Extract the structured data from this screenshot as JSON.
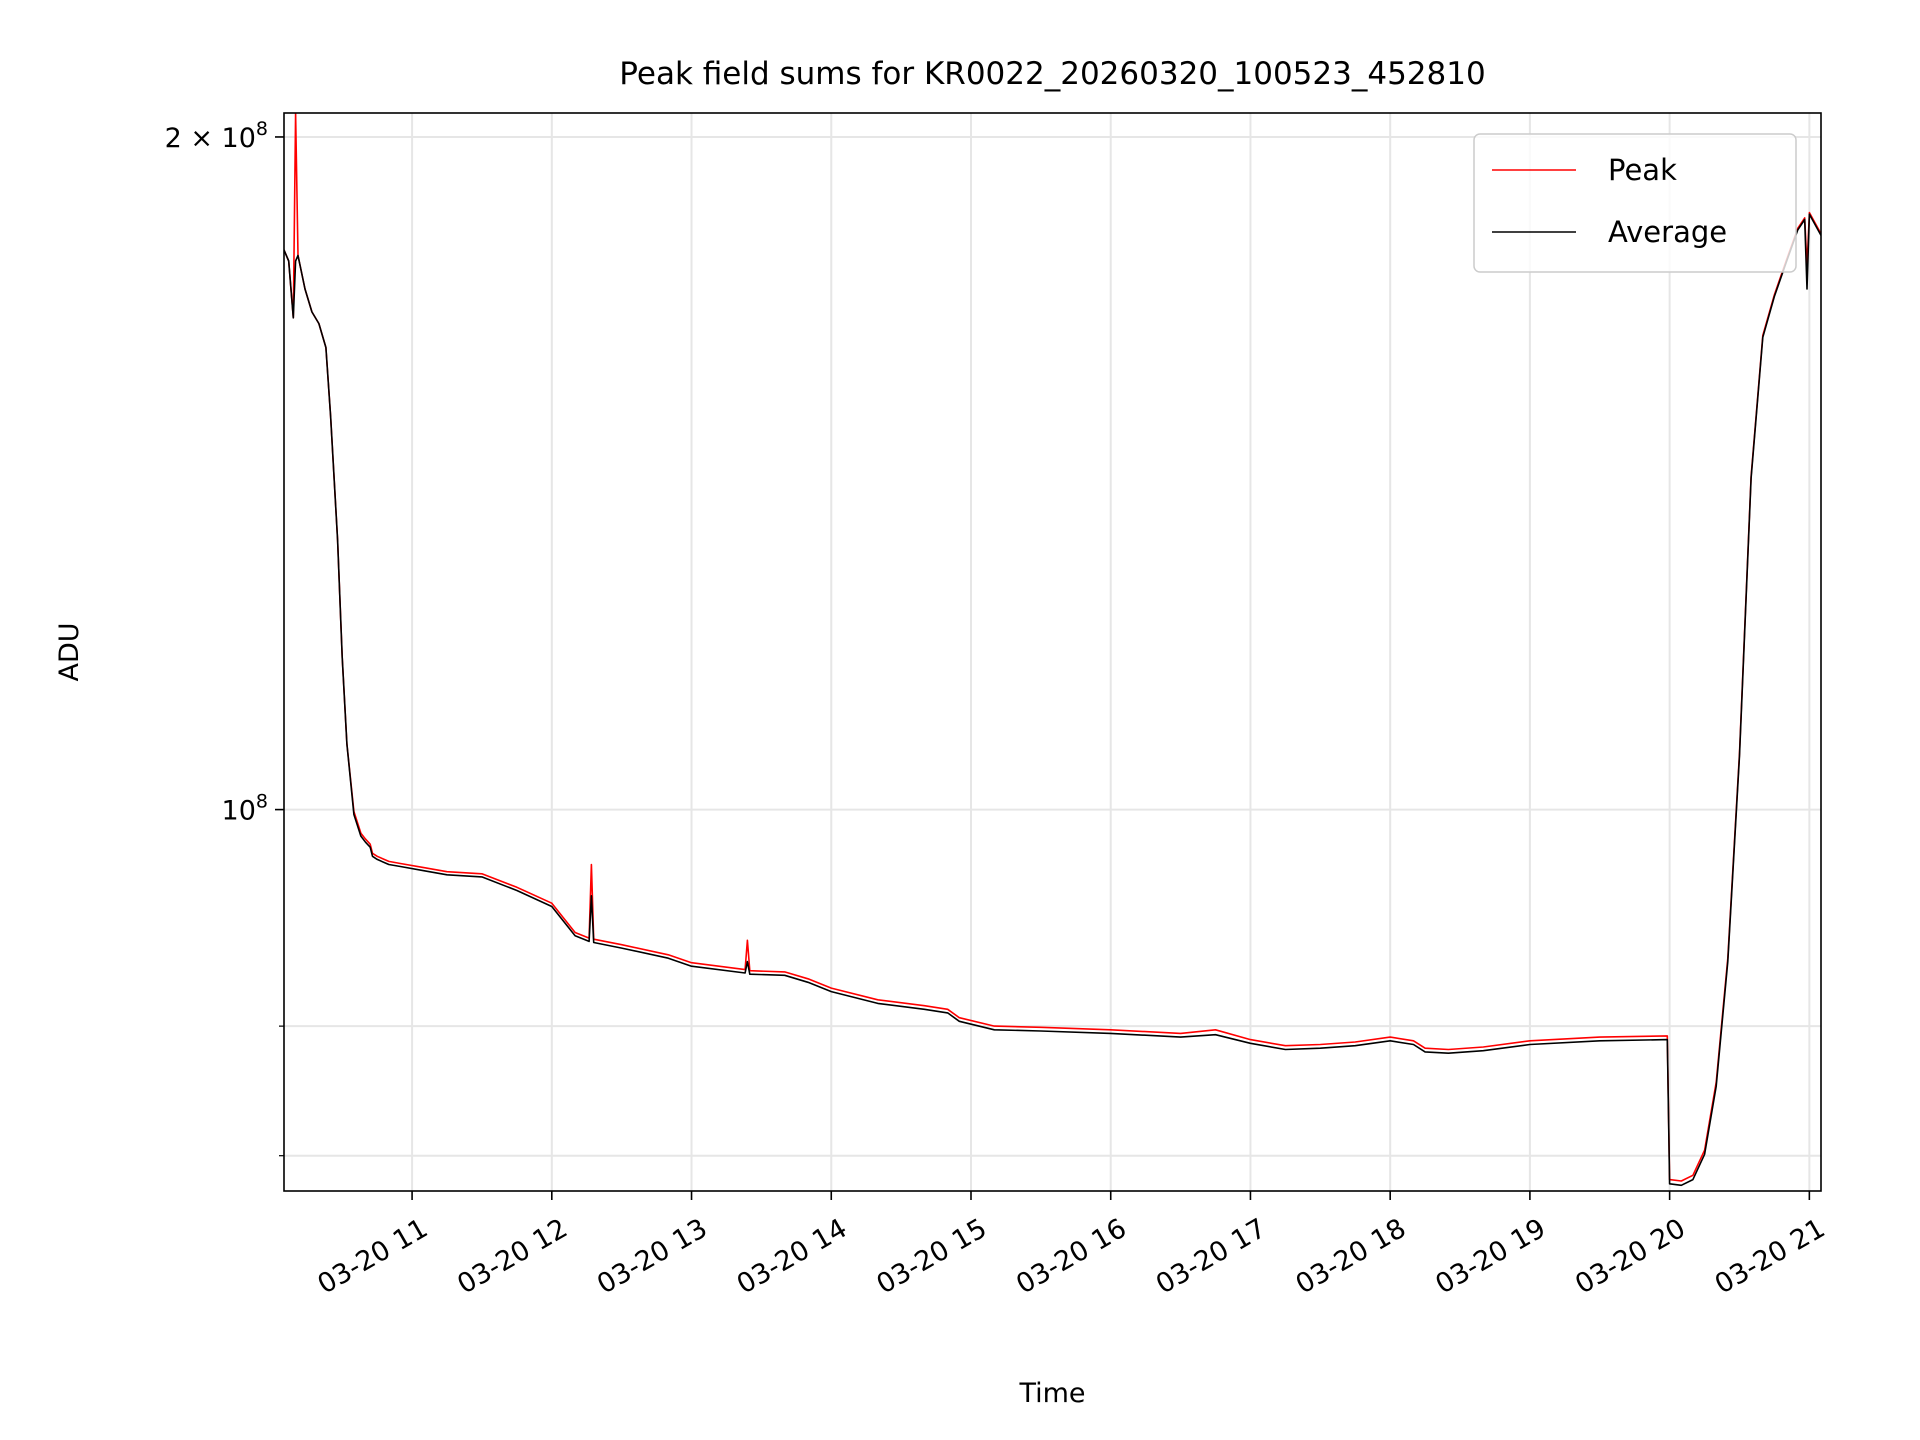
{
  "chart_data": {
    "type": "line",
    "title": "Peak field sums for KR0022_20260320_100523_452810",
    "xlabel": "Time",
    "ylabel": "ADU",
    "xlim": [
      "2026-03-20 10:05",
      "2026-03-20 21:05"
    ],
    "ylim": [
      67500000,
      205000000
    ],
    "yscale": "log",
    "grid": true,
    "legend_position": "top-right",
    "x_ticks": [
      {
        "value": "2026-03-20 11:00",
        "label": "03-20 11"
      },
      {
        "value": "2026-03-20 12:00",
        "label": "03-20 12"
      },
      {
        "value": "2026-03-20 13:00",
        "label": "03-20 13"
      },
      {
        "value": "2026-03-20 14:00",
        "label": "03-20 14"
      },
      {
        "value": "2026-03-20 15:00",
        "label": "03-20 15"
      },
      {
        "value": "2026-03-20 16:00",
        "label": "03-20 16"
      },
      {
        "value": "2026-03-20 17:00",
        "label": "03-20 17"
      },
      {
        "value": "2026-03-20 18:00",
        "label": "03-20 18"
      },
      {
        "value": "2026-03-20 19:00",
        "label": "03-20 19"
      },
      {
        "value": "2026-03-20 20:00",
        "label": "03-20 20"
      },
      {
        "value": "2026-03-20 21:00",
        "label": "03-20 21"
      }
    ],
    "y_ticks": [
      {
        "value": 100000000,
        "base": "10",
        "exp": "8"
      },
      {
        "value": 200000000,
        "base": "2 × 10",
        "exp": "8"
      }
    ],
    "y_minor_ticks": [
      80000000,
      70000000
    ],
    "series": [
      {
        "name": "Peak",
        "color": "#ff0000",
        "x": [
          "2026-03-20 10:05",
          "2026-03-20 10:07",
          "2026-03-20 10:09",
          "2026-03-20 10:10",
          "2026-03-20 10:11",
          "2026-03-20 10:12",
          "2026-03-20 10:14",
          "2026-03-20 10:17",
          "2026-03-20 10:20",
          "2026-03-20 10:23",
          "2026-03-20 10:25",
          "2026-03-20 10:28",
          "2026-03-20 10:30",
          "2026-03-20 10:32",
          "2026-03-20 10:35",
          "2026-03-20 10:38",
          "2026-03-20 10:40",
          "2026-03-20 10:42",
          "2026-03-20 10:43",
          "2026-03-20 10:45",
          "2026-03-20 10:50",
          "2026-03-20 10:55",
          "2026-03-20 11:05",
          "2026-03-20 11:15",
          "2026-03-20 11:30",
          "2026-03-20 11:45",
          "2026-03-20 12:00",
          "2026-03-20 12:10",
          "2026-03-20 12:16",
          "2026-03-20 12:17",
          "2026-03-20 12:18",
          "2026-03-20 12:30",
          "2026-03-20 12:50",
          "2026-03-20 13:00",
          "2026-03-20 13:23",
          "2026-03-20 13:24",
          "2026-03-20 13:25",
          "2026-03-20 13:40",
          "2026-03-20 13:50",
          "2026-03-20 14:00",
          "2026-03-20 14:20",
          "2026-03-20 14:40",
          "2026-03-20 14:50",
          "2026-03-20 14:55",
          "2026-03-20 15:10",
          "2026-03-20 15:30",
          "2026-03-20 16:00",
          "2026-03-20 16:30",
          "2026-03-20 16:45",
          "2026-03-20 17:00",
          "2026-03-20 17:15",
          "2026-03-20 17:30",
          "2026-03-20 17:45",
          "2026-03-20 18:00",
          "2026-03-20 18:10",
          "2026-03-20 18:15",
          "2026-03-20 18:25",
          "2026-03-20 18:40",
          "2026-03-20 19:00",
          "2026-03-20 19:30",
          "2026-03-20 19:59",
          "2026-03-20 20:00",
          "2026-03-20 20:05",
          "2026-03-20 20:10",
          "2026-03-20 20:15",
          "2026-03-20 20:20",
          "2026-03-20 20:25",
          "2026-03-20 20:30",
          "2026-03-20 20:35",
          "2026-03-20 20:40",
          "2026-03-20 20:45",
          "2026-03-20 20:50",
          "2026-03-20 20:55",
          "2026-03-20 20:58",
          "2026-03-20 20:59",
          "2026-03-20 21:00",
          "2026-03-20 21:05"
        ],
        "y": [
          178000000,
          176000000,
          166000000,
          205000000,
          177000000,
          175000000,
          171000000,
          167000000,
          165000000,
          161000000,
          150000000,
          132000000,
          117000000,
          107000000,
          99800000,
          97600000,
          97000000,
          96500000,
          95600000,
          95300000,
          94800000,
          94600000,
          94200000,
          93800000,
          93600000,
          92300000,
          90800000,
          88100000,
          87600000,
          94500000,
          87500000,
          87000000,
          86100000,
          85400000,
          84800000,
          87400000,
          84700000,
          84600000,
          84000000,
          83200000,
          82200000,
          81700000,
          81400000,
          80700000,
          80000000,
          79900000,
          79700000,
          79400000,
          79700000,
          78900000,
          78400000,
          78500000,
          78700000,
          79100000,
          78800000,
          78200000,
          78100000,
          78300000,
          78800000,
          79100000,
          79200000,
          68300000,
          68200000,
          68600000,
          70400000,
          75500000,
          85800000,
          106000000,
          141000000,
          163000000,
          170000000,
          176000000,
          182000000,
          184000000,
          175000000,
          185000000,
          181000000
        ]
      },
      {
        "name": "Average",
        "color": "#000000",
        "x": [
          "2026-03-20 10:05",
          "2026-03-20 10:07",
          "2026-03-20 10:09",
          "2026-03-20 10:10",
          "2026-03-20 10:11",
          "2026-03-20 10:12",
          "2026-03-20 10:14",
          "2026-03-20 10:17",
          "2026-03-20 10:20",
          "2026-03-20 10:23",
          "2026-03-20 10:25",
          "2026-03-20 10:28",
          "2026-03-20 10:30",
          "2026-03-20 10:32",
          "2026-03-20 10:35",
          "2026-03-20 10:38",
          "2026-03-20 10:40",
          "2026-03-20 10:42",
          "2026-03-20 10:43",
          "2026-03-20 10:45",
          "2026-03-20 10:50",
          "2026-03-20 10:55",
          "2026-03-20 11:05",
          "2026-03-20 11:15",
          "2026-03-20 11:30",
          "2026-03-20 11:45",
          "2026-03-20 12:00",
          "2026-03-20 12:10",
          "2026-03-20 12:16",
          "2026-03-20 12:17",
          "2026-03-20 12:18",
          "2026-03-20 12:30",
          "2026-03-20 12:50",
          "2026-03-20 13:00",
          "2026-03-20 13:23",
          "2026-03-20 13:24",
          "2026-03-20 13:25",
          "2026-03-20 13:40",
          "2026-03-20 13:50",
          "2026-03-20 14:00",
          "2026-03-20 14:20",
          "2026-03-20 14:40",
          "2026-03-20 14:50",
          "2026-03-20 14:55",
          "2026-03-20 15:10",
          "2026-03-20 15:30",
          "2026-03-20 16:00",
          "2026-03-20 16:30",
          "2026-03-20 16:45",
          "2026-03-20 17:00",
          "2026-03-20 17:15",
          "2026-03-20 17:30",
          "2026-03-20 17:45",
          "2026-03-20 18:00",
          "2026-03-20 18:10",
          "2026-03-20 18:15",
          "2026-03-20 18:25",
          "2026-03-20 18:40",
          "2026-03-20 19:00",
          "2026-03-20 19:30",
          "2026-03-20 19:59",
          "2026-03-20 20:00",
          "2026-03-20 20:05",
          "2026-03-20 20:10",
          "2026-03-20 20:15",
          "2026-03-20 20:20",
          "2026-03-20 20:25",
          "2026-03-20 20:30",
          "2026-03-20 20:35",
          "2026-03-20 20:40",
          "2026-03-20 20:45",
          "2026-03-20 20:50",
          "2026-03-20 20:55",
          "2026-03-20 20:58",
          "2026-03-20 20:59",
          "2026-03-20 21:00",
          "2026-03-20 21:05"
        ],
        "y": [
          178000000,
          176000000,
          166000000,
          176000000,
          177000000,
          175000000,
          171000000,
          167000000,
          165000000,
          161000000,
          150000000,
          132000000,
          117000000,
          107000000,
          99500000,
          97300000,
          96700000,
          96200000,
          95300000,
          95000000,
          94500000,
          94300000,
          93900000,
          93500000,
          93300000,
          92000000,
          90500000,
          87800000,
          87300000,
          91500000,
          87200000,
          86700000,
          85800000,
          85100000,
          84500000,
          85500000,
          84400000,
          84300000,
          83700000,
          82900000,
          81900000,
          81400000,
          81100000,
          80400000,
          79700000,
          79600000,
          79400000,
          79100000,
          79300000,
          78600000,
          78100000,
          78200000,
          78400000,
          78800000,
          78500000,
          77900000,
          77800000,
          78000000,
          78500000,
          78800000,
          78900000,
          68000000,
          67900000,
          68300000,
          70100000,
          75200000,
          85500000,
          105700000,
          140700000,
          162700000,
          169700000,
          175700000,
          181700000,
          183700000,
          171000000,
          184700000,
          180700000
        ]
      }
    ]
  }
}
